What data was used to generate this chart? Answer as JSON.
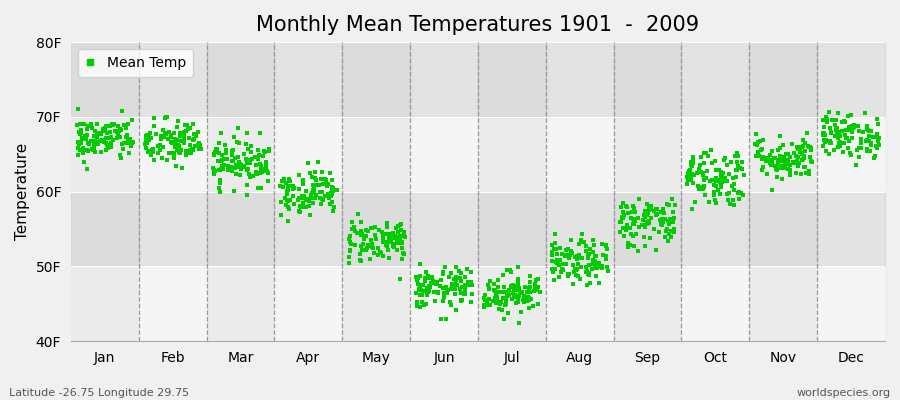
{
  "title": "Monthly Mean Temperatures 1901  -  2009",
  "ylabel": "Temperature",
  "bottom_left": "Latitude -26.75 Longitude 29.75",
  "bottom_right": "worldspecies.org",
  "legend_label": "Mean Temp",
  "ylim": [
    40,
    80
  ],
  "yticks": [
    40,
    50,
    60,
    70,
    80
  ],
  "ytick_labels": [
    "40F",
    "50F",
    "60F",
    "70F",
    "80F"
  ],
  "months": [
    "Jan",
    "Feb",
    "Mar",
    "Apr",
    "May",
    "Jun",
    "Jul",
    "Aug",
    "Sep",
    "Oct",
    "Nov",
    "Dec"
  ],
  "mean_temps_F": [
    67.0,
    66.5,
    64.0,
    60.0,
    53.5,
    47.0,
    46.5,
    50.5,
    56.0,
    62.0,
    64.5,
    67.5
  ],
  "std_temps_F": [
    1.5,
    1.6,
    1.6,
    1.5,
    1.5,
    1.4,
    1.4,
    1.5,
    1.7,
    2.0,
    1.5,
    1.5
  ],
  "n_years": 109,
  "marker_color": "#00cc00",
  "marker_size": 3.5,
  "bg_light": "#f0f0f0",
  "bg_mid": "#e4e4e4",
  "bg_white": "#f8f8f8",
  "grid_color": "#888888",
  "title_fontsize": 15,
  "axis_fontsize": 11,
  "tick_fontsize": 10,
  "legend_fontsize": 10
}
